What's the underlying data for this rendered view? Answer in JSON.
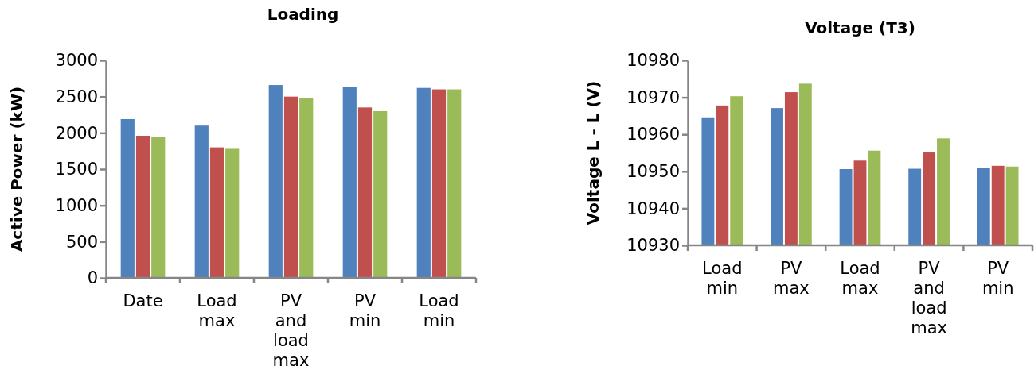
{
  "chart_data": [
    {
      "type": "bar",
      "title": "Loading",
      "ylabel": "Active Power (kW)",
      "categories": [
        "Date",
        "Load max",
        "PV and load max",
        "PV min",
        "Load min"
      ],
      "series": [
        {
          "color": "#4f81bd",
          "values": [
            2190,
            2100,
            2660,
            2630,
            2620
          ]
        },
        {
          "color": "#c0504d",
          "values": [
            1960,
            1800,
            2500,
            2350,
            2600
          ]
        },
        {
          "color": "#9bbb59",
          "values": [
            1940,
            1780,
            2480,
            2300,
            2600
          ]
        }
      ],
      "ylim": [
        0,
        3000
      ],
      "yticks": [
        0,
        500,
        1000,
        1500,
        2000,
        2500,
        3000
      ]
    },
    {
      "type": "bar",
      "title": "Voltage (T3)",
      "ylabel": "Voltage L - L (V)",
      "categories": [
        "Load min",
        "PV max",
        "Load max",
        "PV and load max",
        "PV min"
      ],
      "series": [
        {
          "color": "#4f81bd",
          "values": [
            10964.6,
            10967.1,
            10950.6,
            10950.7,
            10951.0
          ]
        },
        {
          "color": "#c0504d",
          "values": [
            10967.8,
            10971.4,
            10952.9,
            10955.1,
            10951.5
          ]
        },
        {
          "color": "#9bbb59",
          "values": [
            10970.3,
            10973.7,
            10955.6,
            10958.9,
            10951.3
          ]
        }
      ],
      "ylim": [
        10930,
        10980
      ],
      "yticks": [
        10930,
        10940,
        10950,
        10960,
        10970,
        10980
      ]
    }
  ]
}
